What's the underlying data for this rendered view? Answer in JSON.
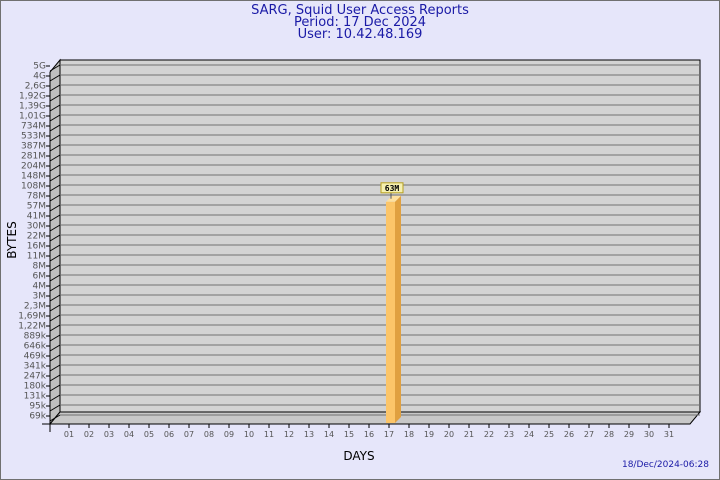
{
  "header": {
    "title": "SARG, Squid User Access Reports",
    "period": "Period: 17 Dec 2024",
    "user": "User: 10.42.48.169"
  },
  "footer": {
    "timestamp": "18/Dec/2024-06:28"
  },
  "colors": {
    "background": "#e6e6fa",
    "plot": "#d3d3d3",
    "bar_front": "#fcc569",
    "bar_side": "#e0a040",
    "title": "#1a1aa6"
  },
  "chart_data": {
    "type": "bar",
    "xlabel": "DAYS",
    "ylabel": "BYTES",
    "y_scale": "log",
    "grid": true,
    "y_ticks": [
      "5G",
      "4G",
      "2,6G",
      "1,92G",
      "1,39G",
      "1,01G",
      "734M",
      "533M",
      "387M",
      "281M",
      "204M",
      "148M",
      "108M",
      "78M",
      "57M",
      "41M",
      "30M",
      "22M",
      "16M",
      "11M",
      "8M",
      "6M",
      "4M",
      "3M",
      "2,3M",
      "1,69M",
      "1,22M",
      "889k",
      "646k",
      "469k",
      "341k",
      "247k",
      "180k",
      "131k",
      "95k",
      "69k"
    ],
    "categories": [
      "01",
      "02",
      "03",
      "04",
      "05",
      "06",
      "07",
      "08",
      "09",
      "10",
      "11",
      "12",
      "13",
      "14",
      "15",
      "16",
      "17",
      "18",
      "19",
      "20",
      "21",
      "22",
      "23",
      "24",
      "25",
      "26",
      "27",
      "28",
      "29",
      "30",
      "31"
    ],
    "bars": [
      {
        "day": "17",
        "value_bytes": 63000000,
        "label": "63M"
      }
    ]
  }
}
